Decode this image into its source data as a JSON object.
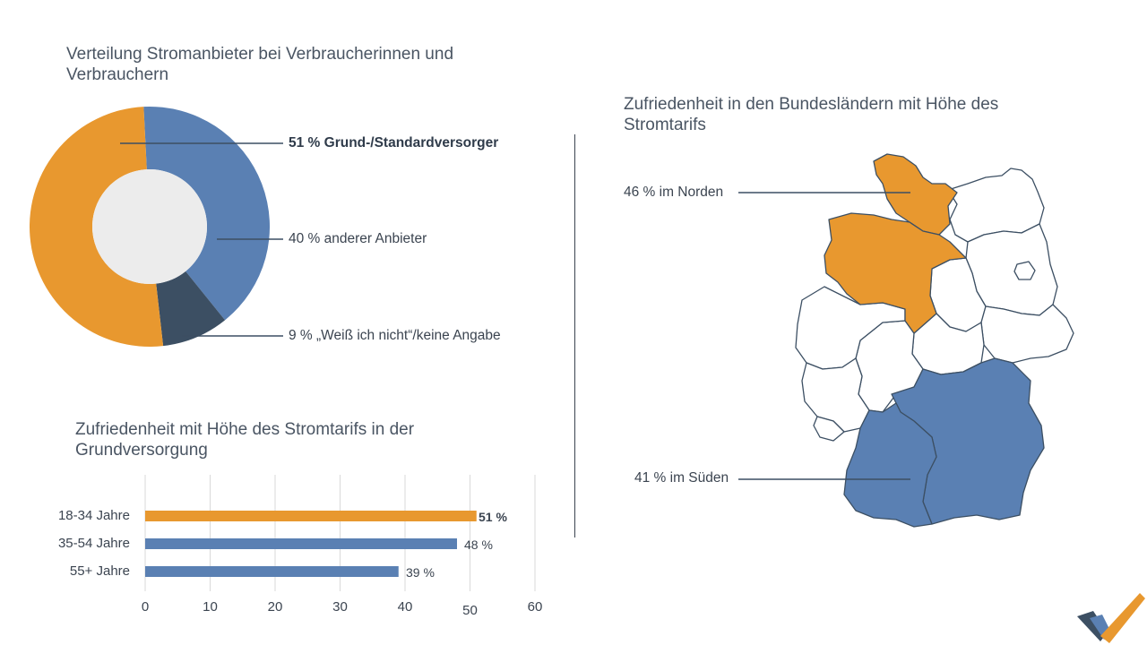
{
  "colors": {
    "orange": "#e8982f",
    "blue": "#5a80b3",
    "dark": "#3c4f63",
    "hole": "#ececec",
    "text": "#3b4450"
  },
  "donut": {
    "title": "Verteilung Stromanbieter bei Verbraucherinnen und Verbrauchern",
    "labels": [
      "51 % Grund-/Standardversorger",
      "40 % anderer Anbieter",
      "9 % „Weiß ich nicht“/keine Angabe"
    ]
  },
  "bars": {
    "title": "Zufriedenheit mit Höhe des Stromtarifs in der Grundversorgung",
    "value_labels": [
      "51 %",
      "48 %",
      "39 %"
    ]
  },
  "map": {
    "title": "Zufriedenheit in den Bundesländern mit Höhe des Stromtarifs",
    "north_label": "46 % im Norden",
    "south_label": "41 % im Süden"
  },
  "logo_icon": "checkmark-logo-icon",
  "chart_data": [
    {
      "type": "pie",
      "title": "Verteilung Stromanbieter bei Verbraucherinnen und Verbrauchern",
      "categories": [
        "Grund-/Standardversorger",
        "anderer Anbieter",
        "„Weiß ich nicht“/keine Angabe"
      ],
      "values": [
        51,
        40,
        9
      ],
      "colors": [
        "#e8982f",
        "#5a80b3",
        "#3c4f63"
      ]
    },
    {
      "type": "bar",
      "orientation": "horizontal",
      "title": "Zufriedenheit mit Höhe des Stromtarifs in der Grundversorgung",
      "categories": [
        "18-34 Jahre",
        "35-54 Jahre",
        "55+ Jahre"
      ],
      "values": [
        51,
        48,
        39
      ],
      "colors": [
        "#e8982f",
        "#5a80b3",
        "#5a80b3"
      ],
      "xlim": [
        0,
        60
      ],
      "ticks": [
        "0",
        "10",
        "20",
        "30",
        "40",
        "50",
        "60"
      ],
      "grid": true
    },
    {
      "type": "map",
      "title": "Zufriedenheit in den Bundesländern mit Höhe des Stromtarifs",
      "regions": [
        {
          "name": "Norden",
          "value": 46,
          "color": "#e8982f"
        },
        {
          "name": "Süden",
          "value": 41,
          "color": "#5a80b3"
        }
      ]
    }
  ]
}
